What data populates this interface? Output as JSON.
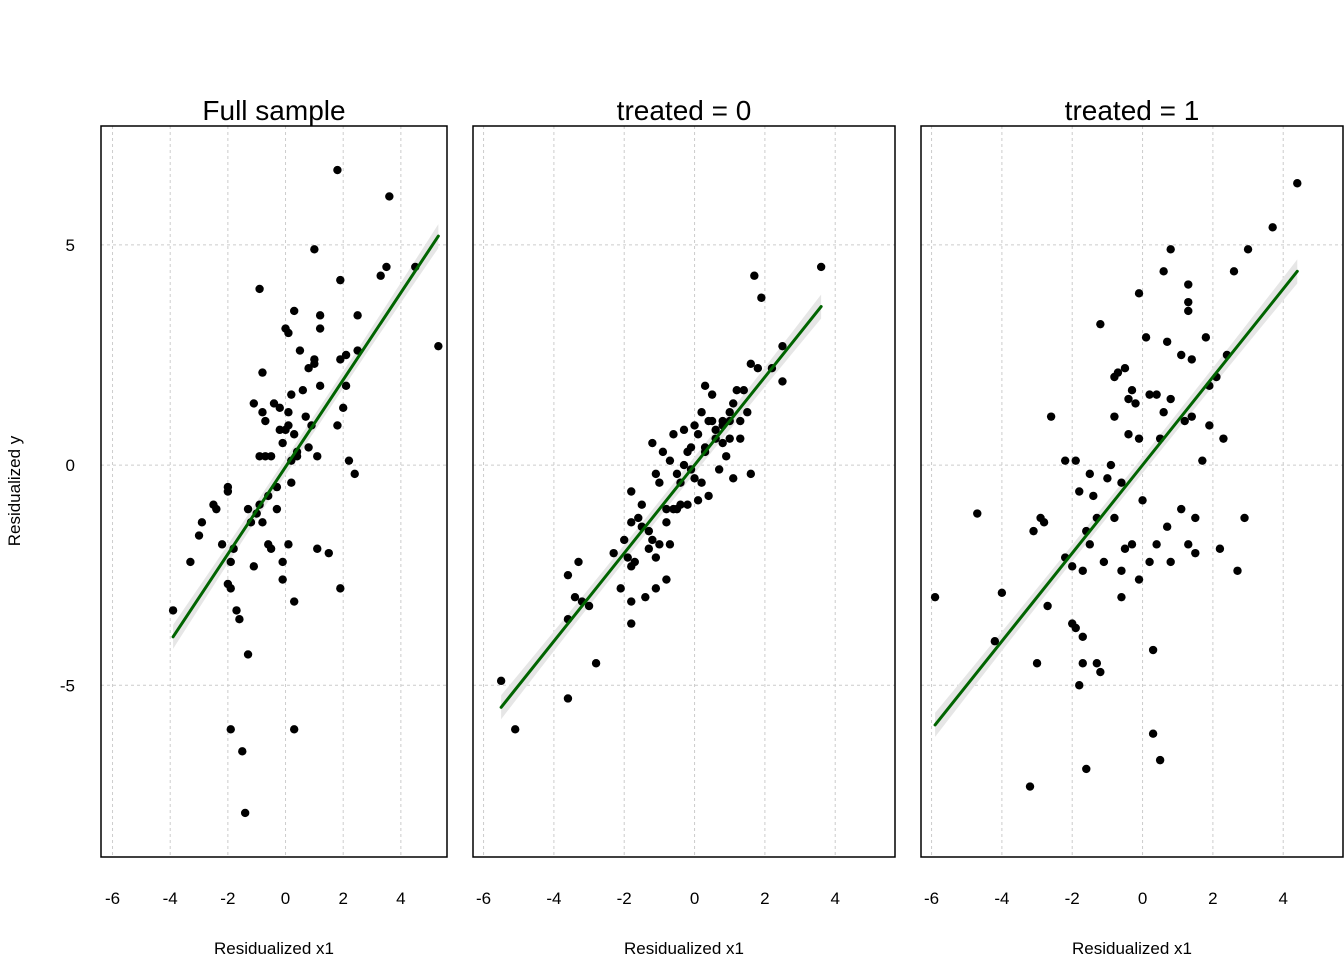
{
  "figure": {
    "ylabel": "Residualized y"
  },
  "chart_data": [
    {
      "type": "scatter",
      "title": "Full sample",
      "xlabel": "Residualized x1",
      "ylabel": "Residualized y",
      "xlim": [
        -6.4,
        5.6
      ],
      "ylim": [
        -8.9,
        7.7
      ],
      "xticks": [
        -6,
        -4,
        -2,
        0,
        2,
        4
      ],
      "yticks": [
        -5,
        0,
        5
      ],
      "grid": true,
      "point_color": "#000000",
      "fit": {
        "x0": -3.9,
        "x1": 5.3,
        "y0": -3.9,
        "y1": 5.2,
        "color": "#006400",
        "band_color": "#e6e6e6"
      },
      "points": [
        [
          -3.9,
          -3.3
        ],
        [
          -3.3,
          -2.2
        ],
        [
          -3.0,
          -1.6
        ],
        [
          -2.9,
          -1.3
        ],
        [
          -2.5,
          -0.9
        ],
        [
          -2.4,
          -1.0
        ],
        [
          -2.2,
          -1.8
        ],
        [
          -2.0,
          -0.6
        ],
        [
          -2.0,
          -0.5
        ],
        [
          -2.0,
          -2.7
        ],
        [
          -1.9,
          -2.8
        ],
        [
          -1.9,
          -2.2
        ],
        [
          -1.9,
          -6.0
        ],
        [
          -1.8,
          -1.9
        ],
        [
          -1.7,
          -3.3
        ],
        [
          -1.6,
          -3.5
        ],
        [
          -1.5,
          -6.5
        ],
        [
          -1.4,
          -7.9
        ],
        [
          -1.3,
          -4.3
        ],
        [
          -1.3,
          -1.0
        ],
        [
          -1.2,
          -1.3
        ],
        [
          -1.1,
          -2.3
        ],
        [
          -1.1,
          1.4
        ],
        [
          -1.0,
          -1.1
        ],
        [
          -0.9,
          4.0
        ],
        [
          -0.9,
          -0.9
        ],
        [
          -0.9,
          0.2
        ],
        [
          -0.8,
          -1.3
        ],
        [
          -0.8,
          1.2
        ],
        [
          -0.8,
          2.1
        ],
        [
          -0.7,
          1.0
        ],
        [
          -0.7,
          0.2
        ],
        [
          -0.6,
          -0.7
        ],
        [
          -0.6,
          -1.8
        ],
        [
          -0.5,
          0.2
        ],
        [
          -0.5,
          -1.9
        ],
        [
          -0.4,
          1.4
        ],
        [
          -0.3,
          -0.5
        ],
        [
          -0.3,
          -1.0
        ],
        [
          -0.2,
          1.3
        ],
        [
          -0.2,
          0.8
        ],
        [
          -0.1,
          0.5
        ],
        [
          -0.1,
          -2.2
        ],
        [
          -0.1,
          -2.6
        ],
        [
          0.0,
          0.8
        ],
        [
          0.0,
          3.1
        ],
        [
          0.1,
          0.9
        ],
        [
          0.1,
          1.2
        ],
        [
          0.1,
          3.0
        ],
        [
          0.1,
          -1.8
        ],
        [
          0.2,
          0.1
        ],
        [
          0.2,
          -0.4
        ],
        [
          0.2,
          1.6
        ],
        [
          0.3,
          -6.0
        ],
        [
          0.3,
          3.5
        ],
        [
          0.3,
          -3.1
        ],
        [
          0.3,
          0.7
        ],
        [
          0.4,
          0.3
        ],
        [
          0.4,
          0.2
        ],
        [
          0.5,
          2.6
        ],
        [
          0.6,
          1.7
        ],
        [
          0.7,
          1.1
        ],
        [
          0.8,
          0.4
        ],
        [
          0.8,
          2.2
        ],
        [
          0.9,
          0.9
        ],
        [
          1.0,
          2.4
        ],
        [
          1.0,
          4.9
        ],
        [
          1.0,
          2.3
        ],
        [
          1.1,
          0.2
        ],
        [
          1.1,
          -1.9
        ],
        [
          1.2,
          3.4
        ],
        [
          1.2,
          3.1
        ],
        [
          1.2,
          1.8
        ],
        [
          1.5,
          -2.0
        ],
        [
          1.8,
          6.7
        ],
        [
          1.8,
          0.9
        ],
        [
          1.9,
          2.4
        ],
        [
          1.9,
          -2.8
        ],
        [
          1.9,
          4.2
        ],
        [
          2.0,
          1.3
        ],
        [
          2.1,
          2.5
        ],
        [
          2.1,
          1.8
        ],
        [
          2.2,
          0.1
        ],
        [
          2.4,
          -0.2
        ],
        [
          2.5,
          3.4
        ],
        [
          2.5,
          2.6
        ],
        [
          3.3,
          4.3
        ],
        [
          3.5,
          4.5
        ],
        [
          3.6,
          6.1
        ],
        [
          4.5,
          4.5
        ],
        [
          5.3,
          2.7
        ]
      ]
    },
    {
      "type": "scatter",
      "title": "treated = 0",
      "xlabel": "Residualized x1",
      "ylabel": "",
      "xlim": [
        -6.3,
        5.7
      ],
      "ylim": [
        -8.9,
        7.7
      ],
      "xticks": [
        -6,
        -4,
        -2,
        0,
        2,
        4
      ],
      "yticks": [
        -5,
        0,
        5
      ],
      "grid": true,
      "point_color": "#000000",
      "fit": {
        "x0": -5.5,
        "x1": 3.6,
        "y0": -5.5,
        "y1": 3.6,
        "color": "#006400",
        "band_color": "#e6e6e6"
      },
      "points": [
        [
          -5.5,
          -4.9
        ],
        [
          -5.1,
          -6.0
        ],
        [
          -3.6,
          -5.3
        ],
        [
          -3.6,
          -3.5
        ],
        [
          -3.6,
          -2.5
        ],
        [
          -3.4,
          -3.0
        ],
        [
          -3.3,
          -2.2
        ],
        [
          -3.2,
          -3.1
        ],
        [
          -3.0,
          -3.2
        ],
        [
          -2.8,
          -4.5
        ],
        [
          -2.3,
          -2.0
        ],
        [
          -2.1,
          -2.8
        ],
        [
          -2.0,
          -1.7
        ],
        [
          -1.9,
          -2.1
        ],
        [
          -1.8,
          -3.1
        ],
        [
          -1.8,
          -3.6
        ],
        [
          -1.8,
          -2.3
        ],
        [
          -1.8,
          -0.6
        ],
        [
          -1.8,
          -1.3
        ],
        [
          -1.7,
          -2.2
        ],
        [
          -1.6,
          -1.2
        ],
        [
          -1.5,
          -1.4
        ],
        [
          -1.5,
          -0.9
        ],
        [
          -1.4,
          -3.0
        ],
        [
          -1.3,
          -1.9
        ],
        [
          -1.3,
          -1.5
        ],
        [
          -1.2,
          -1.7
        ],
        [
          -1.2,
          0.5
        ],
        [
          -1.1,
          -0.2
        ],
        [
          -1.1,
          -2.1
        ],
        [
          -1.1,
          -2.8
        ],
        [
          -1.0,
          -1.8
        ],
        [
          -1.0,
          -0.4
        ],
        [
          -0.9,
          0.3
        ],
        [
          -0.8,
          -1.3
        ],
        [
          -0.8,
          -1.0
        ],
        [
          -0.8,
          -2.6
        ],
        [
          -0.7,
          -1.8
        ],
        [
          -0.7,
          0.1
        ],
        [
          -0.6,
          0.7
        ],
        [
          -0.6,
          -1.0
        ],
        [
          -0.5,
          -0.2
        ],
        [
          -0.5,
          -1.0
        ],
        [
          -0.4,
          -0.9
        ],
        [
          -0.4,
          -0.4
        ],
        [
          -0.3,
          0.0
        ],
        [
          -0.3,
          0.8
        ],
        [
          -0.2,
          -0.9
        ],
        [
          -0.2,
          0.3
        ],
        [
          -0.1,
          0.4
        ],
        [
          -0.1,
          -0.1
        ],
        [
          0.0,
          -0.3
        ],
        [
          0.0,
          0.9
        ],
        [
          0.1,
          -0.8
        ],
        [
          0.1,
          0.7
        ],
        [
          0.2,
          1.2
        ],
        [
          0.2,
          -0.4
        ],
        [
          0.3,
          0.3
        ],
        [
          0.3,
          1.8
        ],
        [
          0.3,
          0.4
        ],
        [
          0.4,
          1.0
        ],
        [
          0.4,
          -0.7
        ],
        [
          0.5,
          1.6
        ],
        [
          0.5,
          1.0
        ],
        [
          0.6,
          0.6
        ],
        [
          0.6,
          0.8
        ],
        [
          0.7,
          -0.1
        ],
        [
          0.8,
          0.9
        ],
        [
          0.8,
          1.0
        ],
        [
          0.8,
          0.5
        ],
        [
          0.9,
          0.2
        ],
        [
          1.0,
          0.6
        ],
        [
          1.0,
          1.2
        ],
        [
          1.0,
          1.0
        ],
        [
          1.1,
          1.4
        ],
        [
          1.1,
          -0.3
        ],
        [
          1.2,
          1.7
        ],
        [
          1.3,
          1.0
        ],
        [
          1.3,
          0.6
        ],
        [
          1.4,
          1.7
        ],
        [
          1.5,
          1.2
        ],
        [
          1.6,
          2.3
        ],
        [
          1.6,
          -0.2
        ],
        [
          1.7,
          4.3
        ],
        [
          1.8,
          2.2
        ],
        [
          1.9,
          3.8
        ],
        [
          2.2,
          2.2
        ],
        [
          2.5,
          2.7
        ],
        [
          2.5,
          1.9
        ],
        [
          3.6,
          4.5
        ]
      ]
    },
    {
      "type": "scatter",
      "title": "treated = 1",
      "xlabel": "Residualized x1",
      "ylabel": "",
      "xlim": [
        -6.3,
        5.7
      ],
      "ylim": [
        -8.9,
        7.7
      ],
      "xticks": [
        -6,
        -4,
        -2,
        0,
        2,
        4
      ],
      "yticks": [
        -5,
        0,
        5
      ],
      "grid": true,
      "point_color": "#000000",
      "fit": {
        "x0": -5.9,
        "x1": 4.4,
        "y0": -5.9,
        "y1": 4.4,
        "color": "#006400",
        "band_color": "#e6e6e6"
      },
      "points": [
        [
          -5.9,
          -3.0
        ],
        [
          -4.7,
          -1.1
        ],
        [
          -4.2,
          -4.0
        ],
        [
          -4.0,
          -2.9
        ],
        [
          -3.2,
          -7.3
        ],
        [
          -3.1,
          -1.5
        ],
        [
          -3.0,
          -4.5
        ],
        [
          -2.9,
          -1.2
        ],
        [
          -2.8,
          -1.3
        ],
        [
          -2.7,
          -3.2
        ],
        [
          -2.6,
          1.1
        ],
        [
          -2.2,
          -2.1
        ],
        [
          -2.2,
          0.1
        ],
        [
          -2.0,
          -3.6
        ],
        [
          -2.0,
          -2.3
        ],
        [
          -1.9,
          -3.7
        ],
        [
          -1.9,
          0.1
        ],
        [
          -1.8,
          -0.6
        ],
        [
          -1.8,
          -5.0
        ],
        [
          -1.7,
          -2.4
        ],
        [
          -1.7,
          -4.5
        ],
        [
          -1.7,
          -3.9
        ],
        [
          -1.6,
          -6.9
        ],
        [
          -1.6,
          -1.5
        ],
        [
          -1.5,
          -1.8
        ],
        [
          -1.5,
          -0.2
        ],
        [
          -1.4,
          -0.7
        ],
        [
          -1.3,
          -1.2
        ],
        [
          -1.3,
          -4.5
        ],
        [
          -1.2,
          -4.7
        ],
        [
          -1.2,
          3.2
        ],
        [
          -1.1,
          -2.2
        ],
        [
          -1.0,
          -0.3
        ],
        [
          -0.9,
          0.0
        ],
        [
          -0.8,
          2.0
        ],
        [
          -0.8,
          1.1
        ],
        [
          -0.8,
          -1.2
        ],
        [
          -0.7,
          2.1
        ],
        [
          -0.6,
          -0.4
        ],
        [
          -0.6,
          -2.4
        ],
        [
          -0.6,
          -3.0
        ],
        [
          -0.5,
          -1.9
        ],
        [
          -0.5,
          2.2
        ],
        [
          -0.4,
          1.5
        ],
        [
          -0.4,
          0.7
        ],
        [
          -0.3,
          -1.8
        ],
        [
          -0.3,
          1.7
        ],
        [
          -0.2,
          1.4
        ],
        [
          -0.1,
          -2.6
        ],
        [
          -0.1,
          0.6
        ],
        [
          -0.1,
          3.9
        ],
        [
          0.0,
          -0.8
        ],
        [
          0.1,
          2.9
        ],
        [
          0.2,
          1.6
        ],
        [
          0.2,
          -2.2
        ],
        [
          0.3,
          -4.2
        ],
        [
          0.3,
          -6.1
        ],
        [
          0.4,
          -1.8
        ],
        [
          0.4,
          1.6
        ],
        [
          0.5,
          -6.7
        ],
        [
          0.5,
          0.6
        ],
        [
          0.6,
          4.4
        ],
        [
          0.6,
          1.2
        ],
        [
          0.7,
          2.8
        ],
        [
          0.7,
          -1.4
        ],
        [
          0.8,
          -2.2
        ],
        [
          0.8,
          4.9
        ],
        [
          0.8,
          1.5
        ],
        [
          1.1,
          -1.0
        ],
        [
          1.1,
          2.5
        ],
        [
          1.2,
          1.0
        ],
        [
          1.3,
          -1.8
        ],
        [
          1.3,
          4.1
        ],
        [
          1.3,
          3.5
        ],
        [
          1.3,
          3.7
        ],
        [
          1.4,
          1.1
        ],
        [
          1.4,
          2.4
        ],
        [
          1.5,
          -2.0
        ],
        [
          1.5,
          -1.2
        ],
        [
          1.7,
          0.1
        ],
        [
          1.8,
          2.9
        ],
        [
          1.9,
          1.8
        ],
        [
          1.9,
          0.9
        ],
        [
          2.1,
          2.0
        ],
        [
          2.2,
          -1.9
        ],
        [
          2.3,
          0.6
        ],
        [
          2.4,
          2.5
        ],
        [
          2.6,
          4.4
        ],
        [
          2.7,
          -2.4
        ],
        [
          2.9,
          -1.2
        ],
        [
          3.0,
          4.9
        ],
        [
          3.7,
          5.4
        ],
        [
          4.4,
          6.4
        ]
      ]
    }
  ]
}
